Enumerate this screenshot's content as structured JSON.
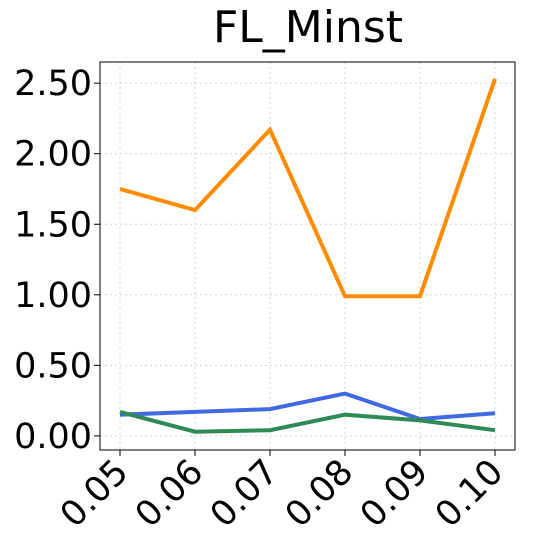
{
  "chart_data": {
    "type": "line",
    "title": "FL_Minst",
    "xlabel": "",
    "ylabel": "",
    "x": [
      0.05,
      0.06,
      0.07,
      0.08,
      0.09,
      0.1
    ],
    "x_tick_labels": [
      "0.05",
      "0.06",
      "0.07",
      "0.08",
      "0.09",
      "0.10"
    ],
    "y_ticks": [
      0.0,
      0.5,
      1.0,
      1.5,
      2.0,
      2.5
    ],
    "y_tick_labels": [
      "0.00",
      "0.50",
      "1.00",
      "1.50",
      "2.00",
      "2.50"
    ],
    "ylim": [
      -0.1,
      2.65
    ],
    "grid": true,
    "series": [
      {
        "color": "#ff8c00",
        "values": [
          1.75,
          1.6,
          2.17,
          0.99,
          0.99,
          2.53
        ]
      },
      {
        "color": "#4169e1",
        "values": [
          0.15,
          0.17,
          0.19,
          0.3,
          0.12,
          0.16
        ]
      },
      {
        "color": "#2e8b57",
        "values": [
          0.17,
          0.03,
          0.04,
          0.15,
          0.11,
          0.04
        ]
      }
    ]
  }
}
